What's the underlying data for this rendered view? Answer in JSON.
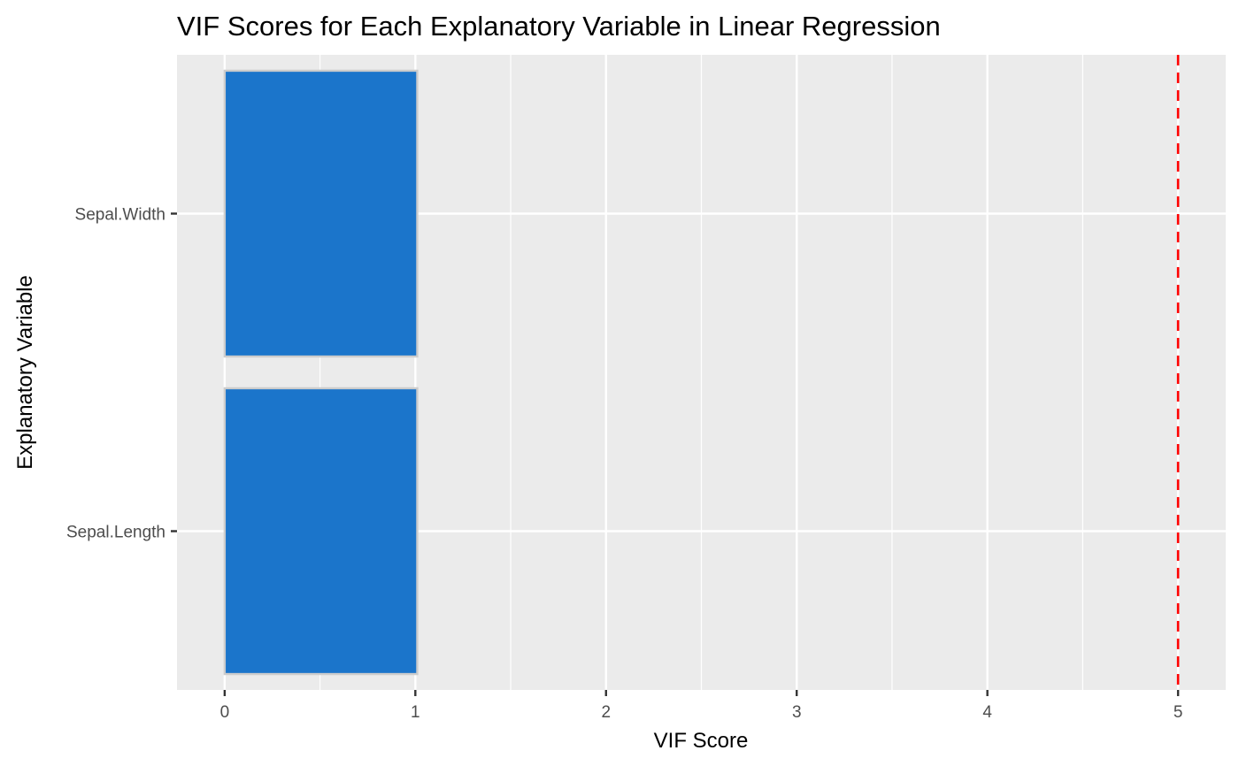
{
  "chart_data": {
    "type": "bar",
    "orientation": "horizontal",
    "title": "VIF Scores for Each Explanatory Variable in Linear Regression",
    "xlabel": "VIF Score",
    "ylabel": "Explanatory Variable",
    "categories": [
      "Sepal.Length",
      "Sepal.Width"
    ],
    "values": [
      1.01,
      1.01
    ],
    "xlim": [
      -0.25,
      5.25
    ],
    "xticks": [
      "0",
      "1",
      "2",
      "3",
      "4",
      "5"
    ],
    "grid": true,
    "reference_line": {
      "x": 5,
      "style": "dashed",
      "color": "#ff0000"
    },
    "colors": {
      "bar_fill": "#1b75cb",
      "bar_outline": "#cccccc",
      "panel_background": "#ebebeb",
      "gridline": "#ffffff"
    }
  }
}
